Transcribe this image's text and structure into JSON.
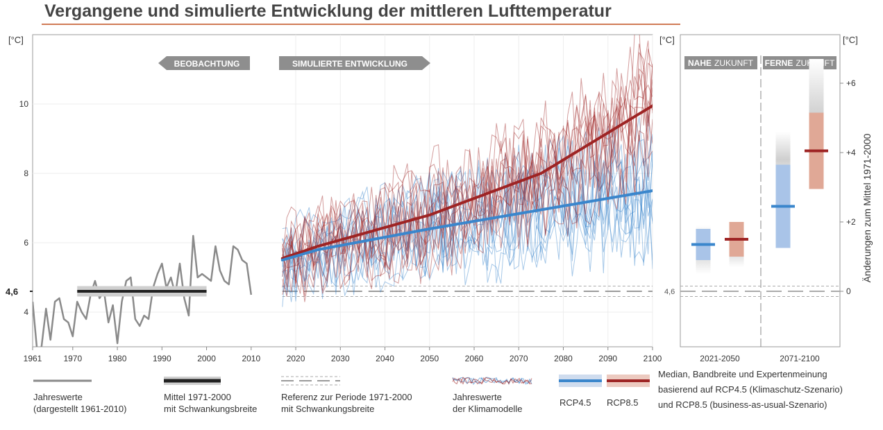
{
  "title": "Vergangene und simulierte Entwicklung der mittleren Lufttemperatur",
  "colors": {
    "observed": "#8a8a8a",
    "mean_line": "#222222",
    "rcp45": "#3a86cc",
    "rcp85": "#9e2424",
    "rcp45_band": "#a9c4e8",
    "rcp85_band": "#e0a896",
    "reference": "#b3b3b3"
  },
  "chart_data": [
    {
      "type": "line",
      "panel": "main",
      "unit_label": "[°C]",
      "ylim": [
        3,
        12
      ],
      "xlim": [
        1961,
        2100
      ],
      "yticks": [
        4,
        6,
        8,
        10
      ],
      "xticks": [
        1961,
        1970,
        1980,
        1990,
        2000,
        2010,
        2020,
        2030,
        2040,
        2050,
        2060,
        2070,
        2080,
        2090,
        2100
      ],
      "reference_value_label": "4,6",
      "reference_value": 4.6,
      "reference_band": [
        4.45,
        4.75
      ],
      "section_labels": {
        "observation": "BEOBACHTUNG",
        "simulation": "SIMULIERTE ENTWICKLUNG"
      },
      "observed": {
        "x": [
          1961,
          1962,
          1963,
          1964,
          1965,
          1966,
          1967,
          1968,
          1969,
          1970,
          1971,
          1972,
          1973,
          1974,
          1975,
          1976,
          1977,
          1978,
          1979,
          1980,
          1981,
          1982,
          1983,
          1984,
          1985,
          1986,
          1987,
          1988,
          1989,
          1990,
          1991,
          1992,
          1993,
          1994,
          1995,
          1996,
          1997,
          1998,
          1999,
          2000,
          2001,
          2002,
          2003,
          2004,
          2005,
          2006,
          2007,
          2008,
          2009,
          2010
        ],
        "y": [
          4.3,
          2.9,
          3.0,
          4.1,
          3.2,
          4.3,
          4.4,
          3.8,
          3.7,
          3.3,
          4.3,
          4.0,
          3.8,
          4.5,
          4.9,
          4.4,
          4.6,
          3.7,
          4.2,
          3.1,
          4.3,
          4.9,
          5.0,
          3.8,
          3.6,
          3.9,
          3.8,
          4.7,
          5.1,
          5.4,
          4.7,
          5.0,
          4.5,
          5.4,
          4.4,
          3.9,
          6.2,
          5.0,
          5.1,
          5.0,
          4.9,
          5.9,
          5.2,
          4.9,
          4.8,
          5.9,
          5.8,
          5.5,
          5.4,
          4.5
        ]
      },
      "mean_1971_2000": {
        "x": [
          1971,
          2000
        ],
        "value": 4.6,
        "band": [
          4.45,
          4.75
        ]
      },
      "rcp45_median": {
        "x": [
          2017,
          2025,
          2050,
          2075,
          2100
        ],
        "y": [
          5.5,
          5.8,
          6.4,
          6.95,
          7.5
        ]
      },
      "rcp85_median": {
        "x": [
          2017,
          2025,
          2050,
          2075,
          2100
        ],
        "y": [
          5.55,
          5.9,
          6.8,
          8.0,
          9.95
        ]
      }
    },
    {
      "type": "bar",
      "panel": "projection",
      "unit_label_left": "[°C]",
      "unit_label_right": "[°C]",
      "y_axis_title": "Änderungen zum Mittel 1971-2000",
      "ylim": [
        -1.6,
        7.4
      ],
      "yticks": [
        0,
        2,
        4,
        6
      ],
      "ytick_labels": [
        "0",
        "+2",
        "+4",
        "+6"
      ],
      "left_tick_label": "4,6",
      "period_labels": {
        "near": [
          "NAHE",
          "ZUKUNFT"
        ],
        "far": [
          "FERNE",
          "ZUKUNFT"
        ]
      },
      "categories": [
        "2021-2050",
        "2071-2100"
      ],
      "series": [
        {
          "name": "RCP4.5",
          "median": [
            1.35,
            2.45
          ],
          "range": [
            0.9,
            2.4
          ],
          "expert": [
            0.5,
            3.0
          ],
          "expert_hi": [
            1.9,
            4.6
          ]
        },
        {
          "name": "RCP8.5",
          "median": [
            1.5,
            4.05
          ],
          "range": [
            1.0,
            2.2
          ],
          "expert": [
            0.7,
            3.4
          ],
          "expert_hi": [
            1.8,
            6.7
          ]
        }
      ]
    }
  ],
  "legend": {
    "observed": [
      "Jahreswerte",
      "(dargestellt 1961-2010)"
    ],
    "mean": [
      "Mittel 1971-2000",
      "mit Schwankungsbreite"
    ],
    "reference": [
      "Referenz zur Periode 1971-2000",
      "mit Schwankungsbreite"
    ],
    "models": [
      "Jahreswerte",
      "der Klimamodelle"
    ],
    "rcp45": "RCP4.5",
    "rcp85": "RCP8.5",
    "description": [
      "Median, Bandbreite und Expertenmeinung",
      "basierend auf RCP4.5 (Klimaschutz-Szenario)",
      "und RCP8.5 (business-as-usual-Szenario)"
    ]
  }
}
